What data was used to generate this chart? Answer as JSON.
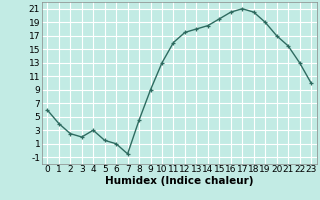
{
  "title": "",
  "xlabel": "Humidex (Indice chaleur)",
  "ylabel": "",
  "x": [
    0,
    1,
    2,
    3,
    4,
    5,
    6,
    7,
    8,
    9,
    10,
    11,
    12,
    13,
    14,
    15,
    16,
    17,
    18,
    19,
    20,
    21,
    22,
    23
  ],
  "y": [
    6,
    4,
    2.5,
    2,
    3,
    1.5,
    1,
    -0.5,
    4.5,
    9,
    13,
    16,
    17.5,
    18,
    18.5,
    19.5,
    20.5,
    21,
    20.5,
    19,
    17,
    15.5,
    13,
    10
  ],
  "line_color": "#2e6b60",
  "bg_color": "#c2ebe4",
  "grid_color": "#ffffff",
  "ylim": [
    -2,
    22
  ],
  "xlim": [
    -0.5,
    23.5
  ],
  "yticks": [
    -1,
    1,
    3,
    5,
    7,
    9,
    11,
    13,
    15,
    17,
    19,
    21
  ],
  "xticks": [
    0,
    1,
    2,
    3,
    4,
    5,
    6,
    7,
    8,
    9,
    10,
    11,
    12,
    13,
    14,
    15,
    16,
    17,
    18,
    19,
    20,
    21,
    22,
    23
  ],
  "marker": "+",
  "marker_size": 3.5,
  "line_width": 1.0,
  "tick_font_size": 6.5,
  "xlabel_font_size": 7.5
}
